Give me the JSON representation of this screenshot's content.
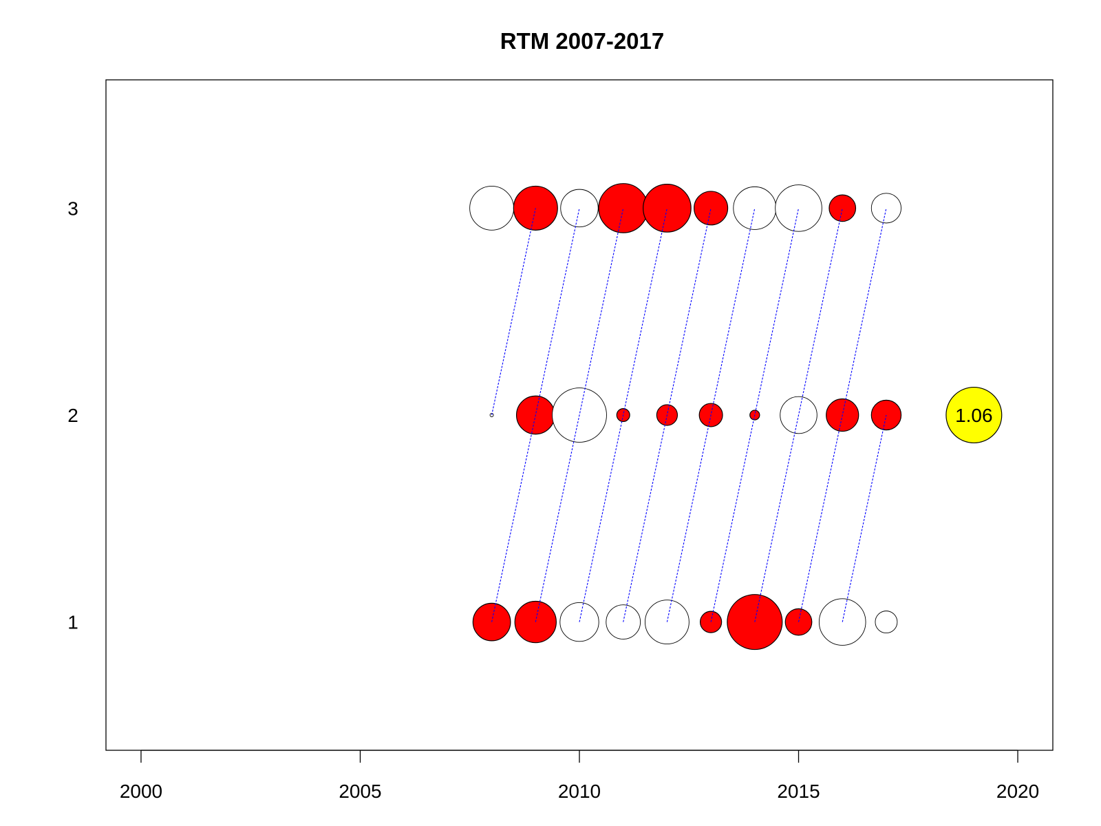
{
  "chart_data": {
    "type": "bubble",
    "title": "RTM 2007-2017",
    "xlabel": "",
    "ylabel": "",
    "xlim": [
      1999.2,
      2020.8
    ],
    "ylim": [
      0.38,
      3.62
    ],
    "x_ticks": [
      2000,
      2005,
      2010,
      2015,
      2020
    ],
    "y_ticks": [
      1,
      2,
      3
    ],
    "colors": {
      "positive_fill": "#ff0000",
      "negative_fill": "#ffffff",
      "stroke": "#000000",
      "cohort_line": "#0000ff",
      "legend_fill": "#ffff00"
    },
    "bubbles": [
      {
        "year": 2008,
        "age": 1,
        "size": 0.58,
        "sign": "positive"
      },
      {
        "year": 2009,
        "age": 1,
        "size": 0.64,
        "sign": "positive"
      },
      {
        "year": 2010,
        "age": 1,
        "size": 0.6,
        "sign": "negative"
      },
      {
        "year": 2011,
        "age": 1,
        "size": 0.53,
        "sign": "negative"
      },
      {
        "year": 2012,
        "age": 1,
        "size": 0.68,
        "sign": "negative"
      },
      {
        "year": 2013,
        "age": 1,
        "size": 0.33,
        "sign": "positive"
      },
      {
        "year": 2014,
        "age": 1,
        "size": 0.85,
        "sign": "positive"
      },
      {
        "year": 2015,
        "age": 1,
        "size": 0.41,
        "sign": "positive"
      },
      {
        "year": 2016,
        "age": 1,
        "size": 0.72,
        "sign": "negative"
      },
      {
        "year": 2017,
        "age": 1,
        "size": 0.34,
        "sign": "negative"
      },
      {
        "year": 2008,
        "age": 2,
        "size": 0.04,
        "sign": "negative"
      },
      {
        "year": 2009,
        "age": 2,
        "size": 0.59,
        "sign": "positive"
      },
      {
        "year": 2010,
        "age": 2,
        "size": 0.84,
        "sign": "negative"
      },
      {
        "year": 2011,
        "age": 2,
        "size": 0.2,
        "sign": "positive"
      },
      {
        "year": 2012,
        "age": 2,
        "size": 0.32,
        "sign": "positive"
      },
      {
        "year": 2013,
        "age": 2,
        "size": 0.36,
        "sign": "positive"
      },
      {
        "year": 2014,
        "age": 2,
        "size": 0.15,
        "sign": "positive"
      },
      {
        "year": 2015,
        "age": 2,
        "size": 0.57,
        "sign": "negative"
      },
      {
        "year": 2016,
        "age": 2,
        "size": 0.5,
        "sign": "positive"
      },
      {
        "year": 2017,
        "age": 2,
        "size": 0.46,
        "sign": "positive"
      },
      {
        "year": 2008,
        "age": 3,
        "size": 0.68,
        "sign": "negative"
      },
      {
        "year": 2009,
        "age": 3,
        "size": 0.68,
        "sign": "positive"
      },
      {
        "year": 2010,
        "age": 3,
        "size": 0.58,
        "sign": "negative"
      },
      {
        "year": 2011,
        "age": 3,
        "size": 0.76,
        "sign": "positive"
      },
      {
        "year": 2012,
        "age": 3,
        "size": 0.74,
        "sign": "positive"
      },
      {
        "year": 2013,
        "age": 3,
        "size": 0.52,
        "sign": "positive"
      },
      {
        "year": 2014,
        "age": 3,
        "size": 0.66,
        "sign": "negative"
      },
      {
        "year": 2015,
        "age": 3,
        "size": 0.72,
        "sign": "negative"
      },
      {
        "year": 2016,
        "age": 3,
        "size": 0.41,
        "sign": "positive"
      },
      {
        "year": 2017,
        "age": 3,
        "size": 0.46,
        "sign": "negative"
      }
    ],
    "cohort_lines": [
      {
        "from": [
          2008,
          1
        ],
        "to": [
          2010,
          3
        ]
      },
      {
        "from": [
          2008,
          2
        ],
        "to": [
          2009,
          3
        ]
      },
      {
        "from": [
          2009,
          1
        ],
        "to": [
          2011,
          3
        ]
      },
      {
        "from": [
          2010,
          1
        ],
        "to": [
          2012,
          3
        ]
      },
      {
        "from": [
          2011,
          1
        ],
        "to": [
          2013,
          3
        ]
      },
      {
        "from": [
          2012,
          1
        ],
        "to": [
          2014,
          3
        ]
      },
      {
        "from": [
          2013,
          1
        ],
        "to": [
          2015,
          3
        ]
      },
      {
        "from": [
          2014,
          1
        ],
        "to": [
          2016,
          3
        ]
      },
      {
        "from": [
          2015,
          1
        ],
        "to": [
          2017,
          3
        ]
      },
      {
        "from": [
          2016,
          1
        ],
        "to": [
          2017,
          2
        ]
      }
    ],
    "legend_bubble": {
      "year": 2019,
      "age": 2,
      "size": 0.86,
      "label": "1.06"
    }
  }
}
